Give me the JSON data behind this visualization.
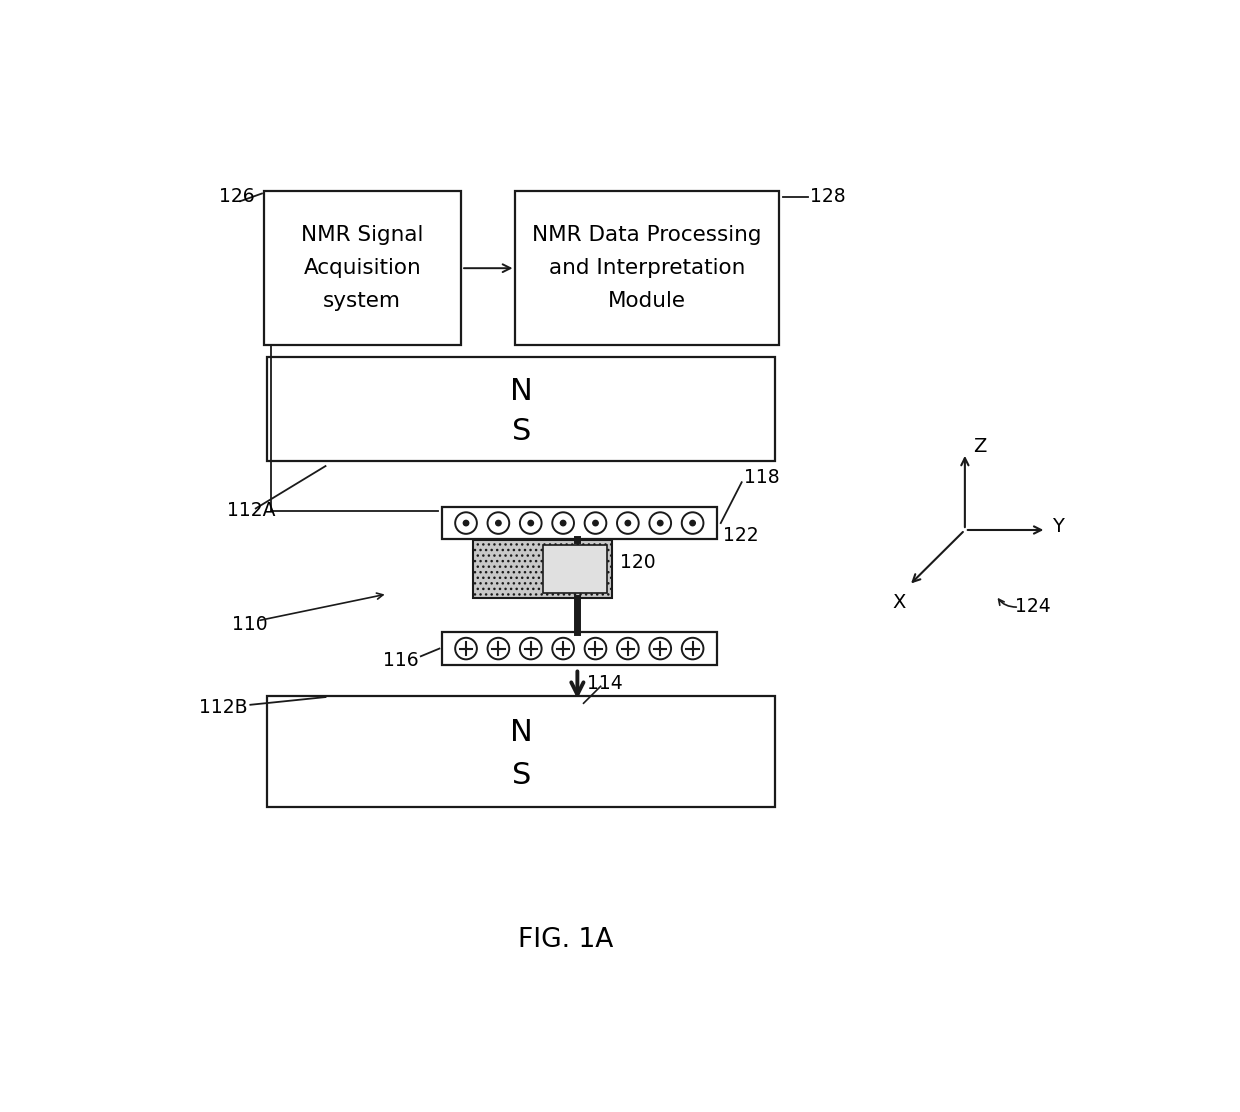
{
  "bg_color": "#ffffff",
  "fig_caption": "FIG. 1A",
  "box1_label": "NMR Signal\nAcquisition\nsystem",
  "box1_ref": "126",
  "box2_label": "NMR Data Processing\nand Interpretation\nModule",
  "box2_ref": "128",
  "magnet_top_label_N": "N",
  "magnet_top_label_S": "S",
  "magnet_top_ref": "112A",
  "magnet_bot_label_N": "N",
  "magnet_bot_label_S": "S",
  "magnet_bot_ref": "112B",
  "coil_top_ref": "118",
  "sample_ref": "120",
  "coil_bot_ref": "116",
  "arrow_ref": "114",
  "axis_ref": "124",
  "assembly_ref": "110",
  "coil_connector_ref": "122",
  "axis_X": "X",
  "axis_Y": "Y",
  "axis_Z": "Z"
}
